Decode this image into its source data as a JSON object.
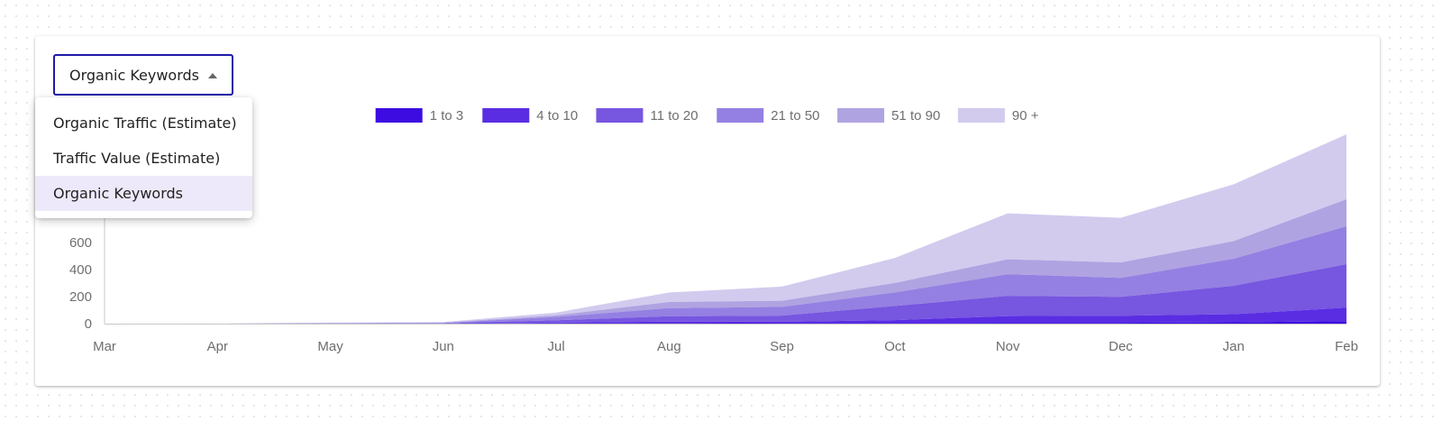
{
  "dropdown": {
    "selected_label": "Organic Keywords",
    "options": [
      {
        "label": "Organic Traffic (Estimate)",
        "selected": false
      },
      {
        "label": "Traffic Value (Estimate)",
        "selected": false
      },
      {
        "label": "Organic Keywords",
        "selected": true
      }
    ],
    "border_color": "#1f1aa8"
  },
  "chart_data": {
    "type": "area",
    "stacked": true,
    "x": [
      "Mar",
      "Apr",
      "May",
      "Jun",
      "Jul",
      "Aug",
      "Sep",
      "Oct",
      "Nov",
      "Dec",
      "Jan",
      "Feb"
    ],
    "y_ticks": [
      0,
      200,
      400,
      600
    ],
    "ylim": [
      0,
      1400
    ],
    "grid": false,
    "legend_position": "top-center",
    "series": [
      {
        "name": "1 to 3",
        "color": "#3d0ce0",
        "values": [
          0,
          0,
          0,
          0,
          2,
          3,
          4,
          4,
          6,
          6,
          10,
          18
        ]
      },
      {
        "name": "4 to 10",
        "color": "#5a2de3",
        "values": [
          0,
          0,
          0,
          1,
          5,
          12,
          10,
          22,
          50,
          52,
          60,
          100
        ]
      },
      {
        "name": "11 to 20",
        "color": "#7756e0",
        "values": [
          0,
          0,
          1,
          2,
          18,
          40,
          45,
          105,
          150,
          140,
          210,
          322
        ]
      },
      {
        "name": "21 to 50",
        "color": "#9480e2",
        "values": [
          0,
          0,
          2,
          2,
          25,
          60,
          65,
          100,
          160,
          140,
          200,
          280
        ]
      },
      {
        "name": "51 to 90",
        "color": "#b0a3e1",
        "values": [
          0,
          0,
          2,
          3,
          12,
          45,
          45,
          70,
          110,
          115,
          130,
          200
        ]
      },
      {
        "name": "90 +",
        "color": "#d2cbee",
        "values": [
          0,
          1,
          2,
          4,
          20,
          70,
          105,
          185,
          340,
          330,
          420,
          480
        ]
      }
    ]
  }
}
